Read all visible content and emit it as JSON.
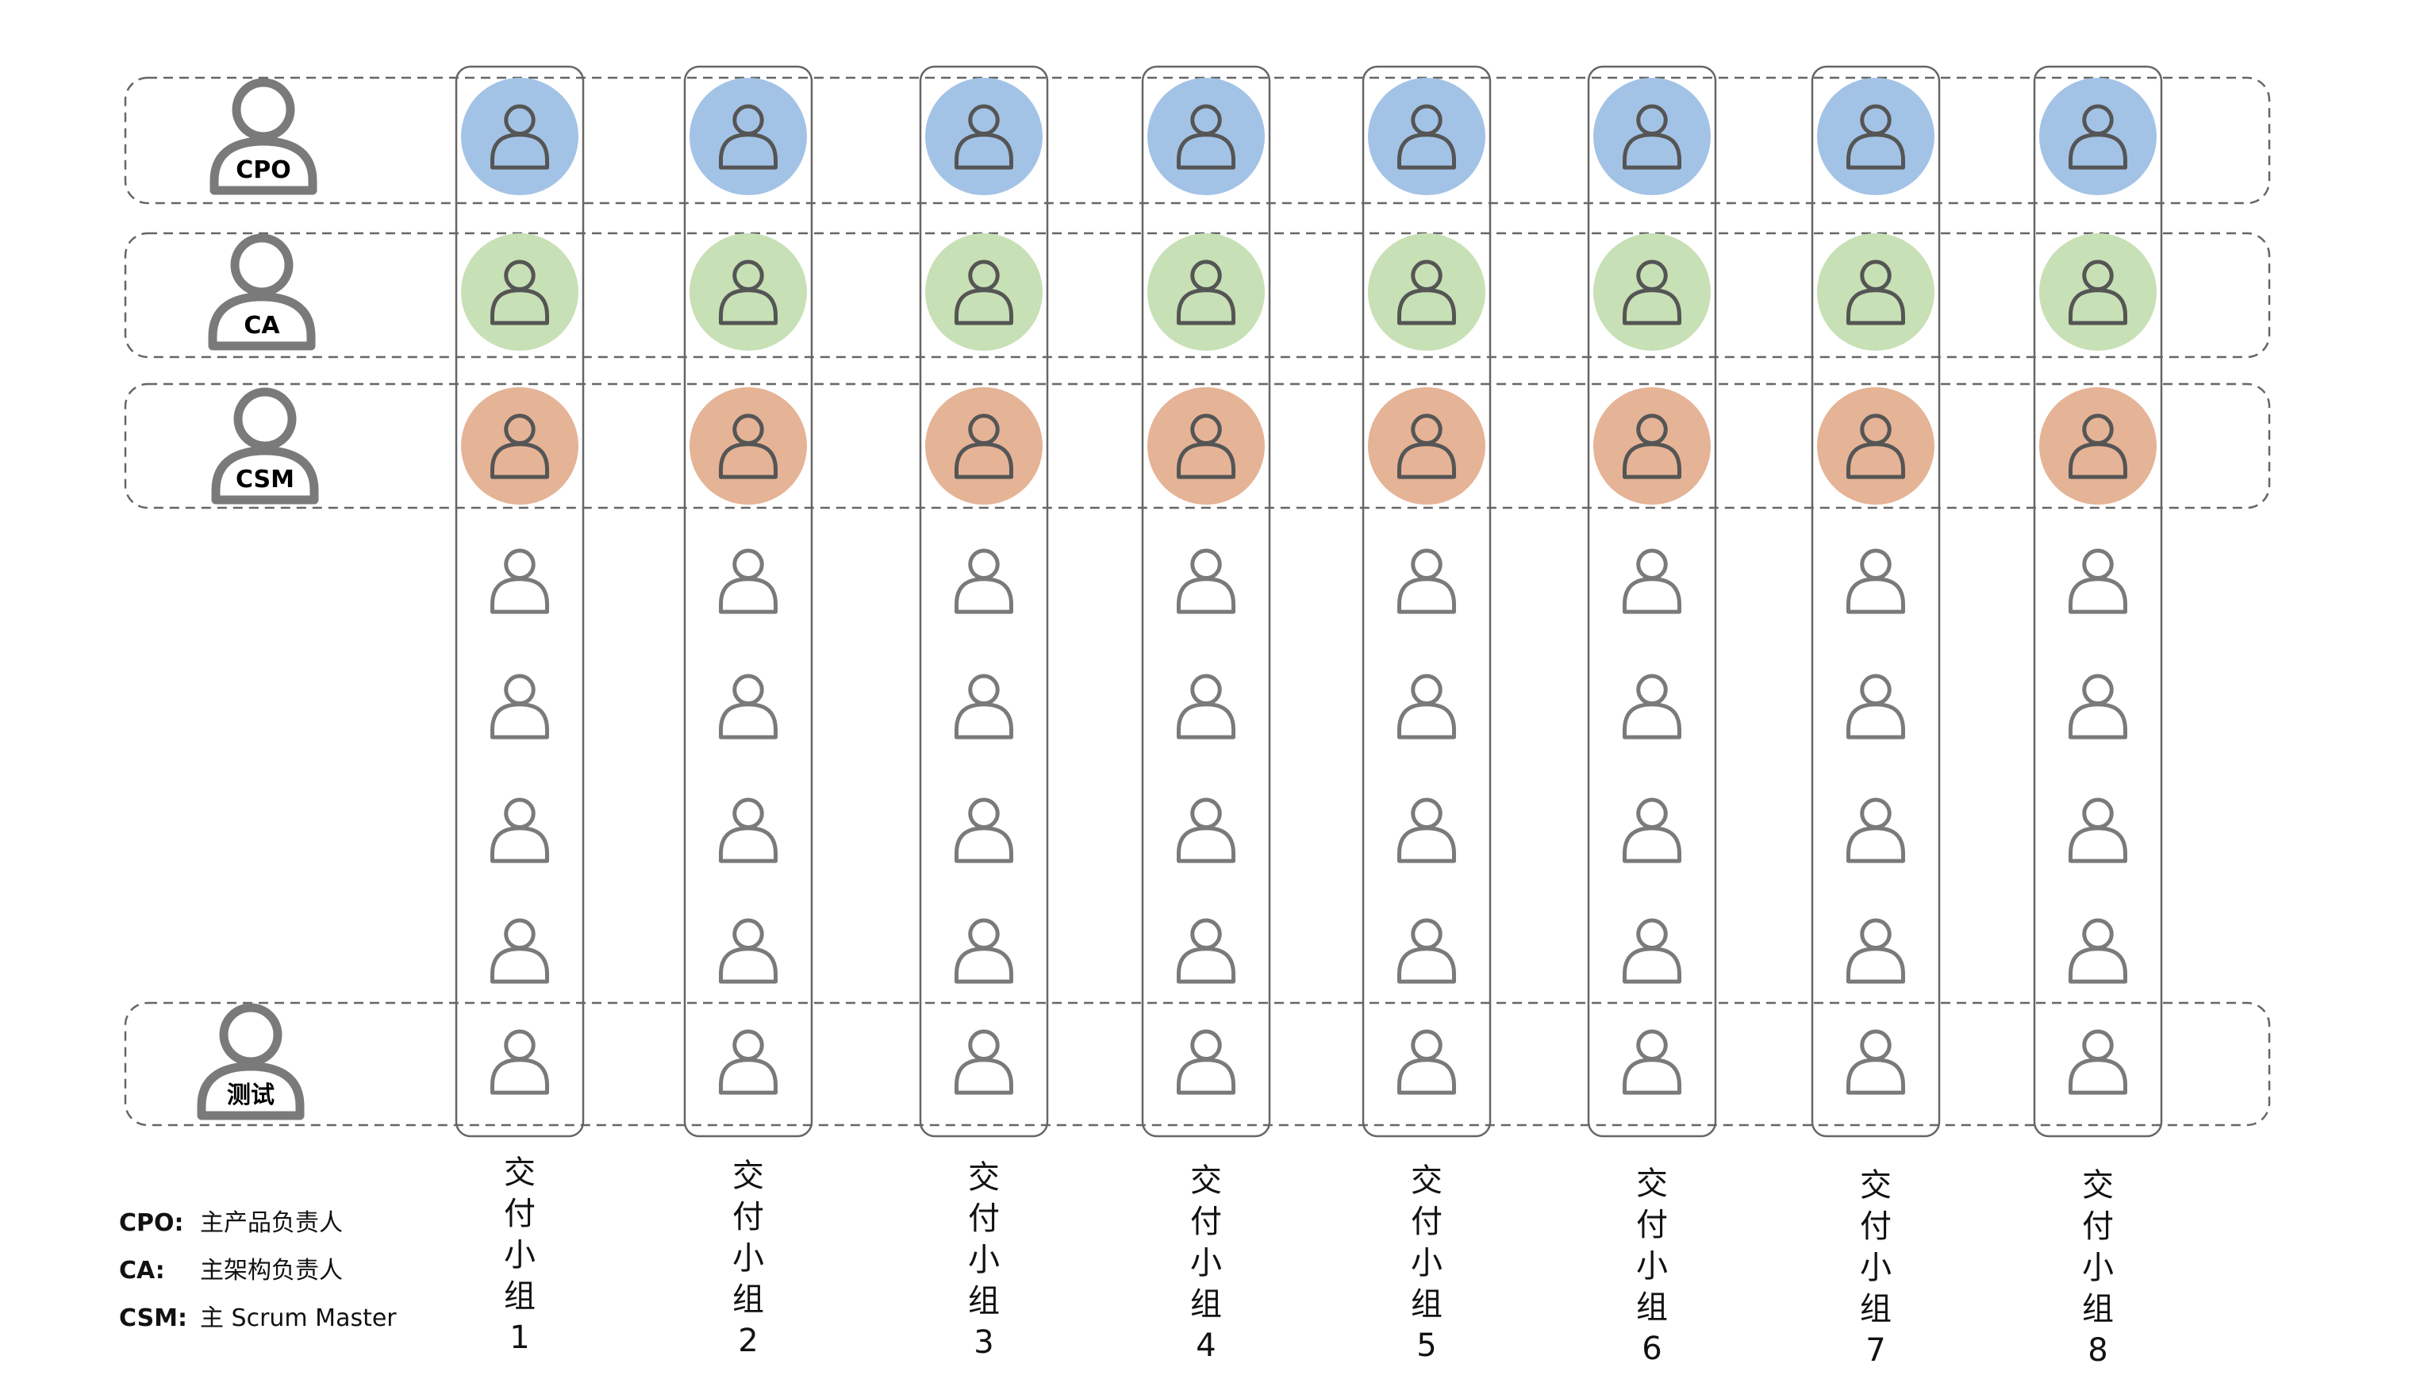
{
  "roles": [
    {
      "key": "cpo",
      "label": "CPO",
      "color": "#a3c3e6"
    },
    {
      "key": "ca",
      "label": "CA",
      "color": "#c7e0b5"
    },
    {
      "key": "csm",
      "label": "CSM",
      "color": "#e5b396"
    },
    {
      "key": "test",
      "label": "测试",
      "color": ""
    }
  ],
  "teams": [
    {
      "label_chars": [
        "交",
        "付",
        "小",
        "组"
      ],
      "number": "1"
    },
    {
      "label_chars": [
        "交",
        "付",
        "小",
        "组"
      ],
      "number": "2"
    },
    {
      "label_chars": [
        "交",
        "付",
        "小",
        "组"
      ],
      "number": "3"
    },
    {
      "label_chars": [
        "交",
        "付",
        "小",
        "组"
      ],
      "number": "4"
    },
    {
      "label_chars": [
        "交",
        "付",
        "小",
        "组"
      ],
      "number": "5"
    },
    {
      "label_chars": [
        "交",
        "付",
        "小",
        "组"
      ],
      "number": "6"
    },
    {
      "label_chars": [
        "交",
        "付",
        "小",
        "组"
      ],
      "number": "7"
    },
    {
      "label_chars": [
        "交",
        "付",
        "小",
        "组"
      ],
      "number": "8"
    }
  ],
  "legend": [
    {
      "key": "CPO:",
      "text": "主产品负责人"
    },
    {
      "key": "CA:",
      "text": "主架构负责人"
    },
    {
      "key": "CSM:",
      "text": "主 Scrum Master"
    }
  ],
  "icon_stroke_color": "#7a7a7a",
  "dark_icon_color": "#555555",
  "frame_color": "#666666"
}
